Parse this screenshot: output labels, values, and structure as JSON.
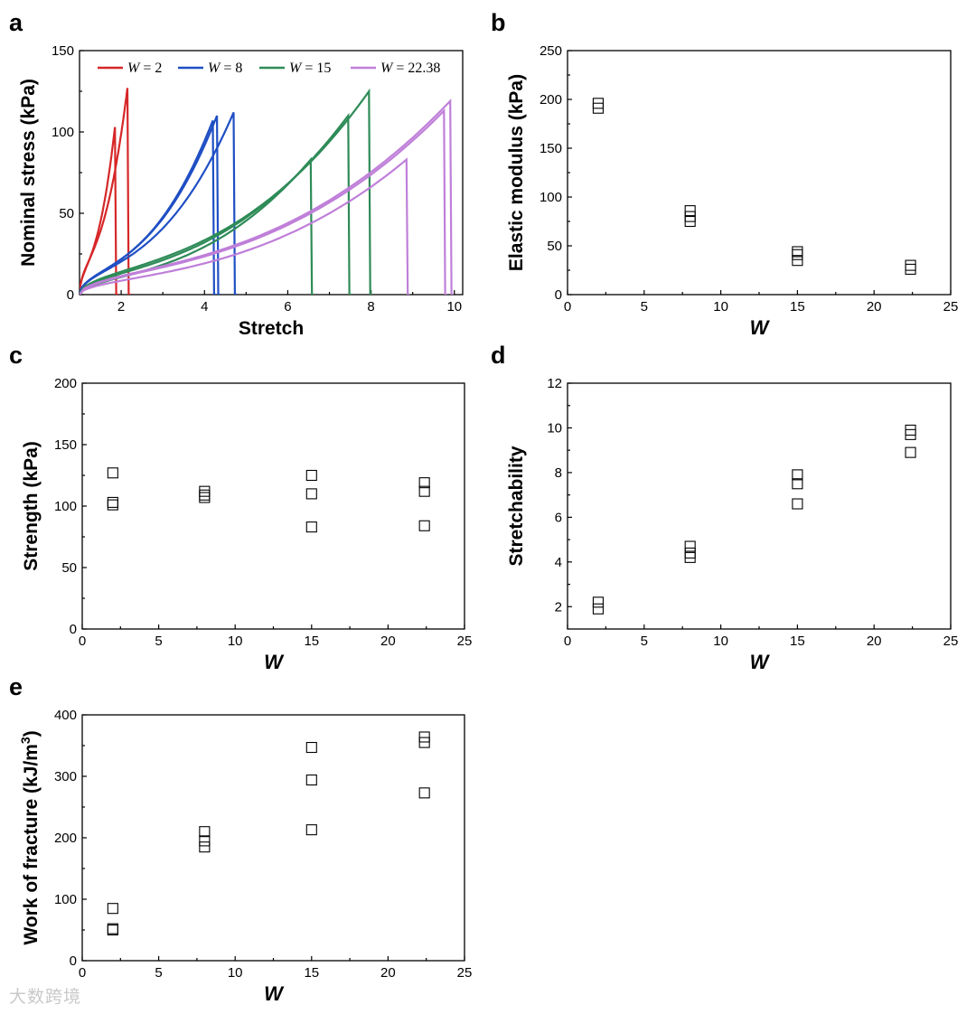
{
  "watermark": "大数跨境",
  "chart_data": [
    {
      "panel": "a",
      "type": "line",
      "xlabel": "Stretch",
      "ylabel": "Nominal stress (kPa)",
      "xlim": [
        1,
        10.2
      ],
      "ylim": [
        0,
        150
      ],
      "xticks": [
        2,
        4,
        6,
        8,
        10
      ],
      "yticks": [
        0,
        50,
        100,
        150
      ],
      "legend_position": "top",
      "series": [
        {
          "name": "W = 2",
          "color": "#d62728",
          "legend": "= 2",
          "breaks": [
            1.85,
            2.15
          ],
          "peaks": [
            103,
            127
          ],
          "sgoal": 0.45
        },
        {
          "name": "W = 8",
          "color": "#1f4fc4",
          "legend": "= 8",
          "breaks": [
            4.2,
            4.3,
            4.7
          ],
          "peaks": [
            107,
            110,
            112
          ],
          "sgoal": 1.2
        },
        {
          "name": "W = 15",
          "color": "#2e8b57",
          "legend": "= 15",
          "breaks": [
            6.55,
            7.45,
            7.95
          ],
          "peaks": [
            83,
            110,
            125
          ],
          "sgoal": 1.5
        },
        {
          "name": "W = 22.38",
          "color": "#bf7fd9",
          "legend": "= 22.38",
          "breaks": [
            8.85,
            9.75,
            9.9
          ],
          "peaks": [
            83,
            113,
            119
          ],
          "sgoal": 1.6
        }
      ]
    },
    {
      "panel": "b",
      "type": "scatter",
      "xlabel": "W",
      "ylabel": "Elastic modulus (kPa)",
      "xlim": [
        0,
        25
      ],
      "ylim": [
        0,
        250
      ],
      "xticks": [
        0,
        5,
        10,
        15,
        20,
        25
      ],
      "yticks": [
        0,
        50,
        100,
        150,
        200,
        250
      ],
      "points": [
        [
          2,
          191
        ],
        [
          2,
          196
        ],
        [
          8,
          75
        ],
        [
          8,
          80
        ],
        [
          8,
          86
        ],
        [
          15,
          35
        ],
        [
          15,
          41
        ],
        [
          15,
          44
        ],
        [
          22.38,
          26
        ],
        [
          22.38,
          30
        ]
      ]
    },
    {
      "panel": "c",
      "type": "scatter",
      "xlabel": "W",
      "ylabel": "Strength (kPa)",
      "xlim": [
        0,
        25
      ],
      "ylim": [
        0,
        200
      ],
      "xticks": [
        0,
        5,
        10,
        15,
        20,
        25
      ],
      "yticks": [
        0,
        50,
        100,
        150,
        200
      ],
      "points": [
        [
          2,
          127
        ],
        [
          2,
          103
        ],
        [
          2,
          101
        ],
        [
          8,
          112
        ],
        [
          8,
          109
        ],
        [
          8,
          107
        ],
        [
          15,
          125
        ],
        [
          15,
          110
        ],
        [
          15,
          83
        ],
        [
          22.38,
          119
        ],
        [
          22.38,
          112
        ],
        [
          22.38,
          84
        ]
      ]
    },
    {
      "panel": "d",
      "type": "scatter",
      "xlabel": "W",
      "ylabel": "Stretchability",
      "xlim": [
        0,
        25
      ],
      "ylim": [
        1,
        12
      ],
      "xticks": [
        0,
        5,
        10,
        15,
        20,
        25
      ],
      "yticks": [
        2,
        4,
        6,
        8,
        10,
        12
      ],
      "points": [
        [
          2,
          1.9
        ],
        [
          2,
          2.2
        ],
        [
          8,
          4.2
        ],
        [
          8,
          4.4
        ],
        [
          8,
          4.7
        ],
        [
          15,
          6.6
        ],
        [
          15,
          7.5
        ],
        [
          15,
          7.9
        ],
        [
          22.38,
          8.9
        ],
        [
          22.38,
          9.7
        ],
        [
          22.38,
          9.9
        ]
      ]
    },
    {
      "panel": "e",
      "type": "scatter",
      "xlabel": "W",
      "ylabel": "Work of fracture (kJ/m",
      "ylabel_sup": "3",
      "ylabel_end": ")",
      "xlim": [
        0,
        25
      ],
      "ylim": [
        0,
        400
      ],
      "xticks": [
        0,
        5,
        10,
        15,
        20,
        25
      ],
      "yticks": [
        0,
        100,
        200,
        300,
        400
      ],
      "points": [
        [
          2,
          85
        ],
        [
          2,
          52
        ],
        [
          2,
          50
        ],
        [
          8,
          210
        ],
        [
          8,
          195
        ],
        [
          8,
          185
        ],
        [
          15,
          347
        ],
        [
          15,
          294
        ],
        [
          15,
          213
        ],
        [
          22.38,
          364
        ],
        [
          22.38,
          355
        ],
        [
          22.38,
          273
        ]
      ]
    }
  ]
}
